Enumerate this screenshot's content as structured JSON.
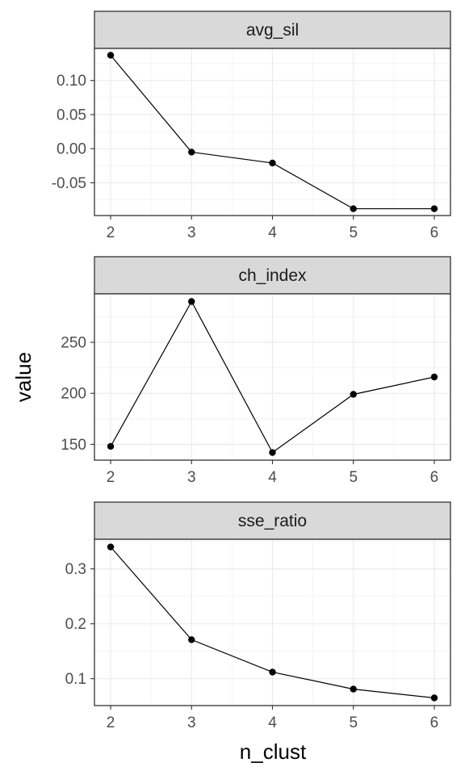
{
  "chart_data": {
    "type": "line",
    "facet_variable": "name",
    "xlabel": "n_clust",
    "ylabel": "value",
    "x": [
      2,
      3,
      4,
      5,
      6
    ],
    "x_tick_labels": [
      "2",
      "3",
      "4",
      "5",
      "6"
    ],
    "grid": true,
    "shared_x": true,
    "free_y": true,
    "facets": [
      {
        "name": "avg_sil",
        "values": [
          0.137,
          -0.005,
          -0.021,
          -0.088,
          -0.088
        ],
        "yticks": [
          0.1,
          0.05,
          0.0,
          -0.05
        ],
        "ytick_labels": [
          "0.10",
          "0.05",
          "0.00",
          "-0.05"
        ],
        "ylim": [
          -0.098,
          0.147
        ]
      },
      {
        "name": "ch_index",
        "values": [
          148,
          290,
          142,
          199,
          216
        ],
        "yticks": [
          250,
          200,
          150
        ],
        "ytick_labels": [
          "250",
          "200",
          "150"
        ],
        "ylim": [
          134.5,
          297.5
        ]
      },
      {
        "name": "sse_ratio",
        "values": [
          0.34,
          0.171,
          0.112,
          0.081,
          0.065
        ],
        "yticks": [
          0.3,
          0.2,
          0.1
        ],
        "ytick_labels": [
          "0.3",
          "0.2",
          "0.1"
        ],
        "ylim": [
          0.051,
          0.354
        ]
      }
    ]
  }
}
